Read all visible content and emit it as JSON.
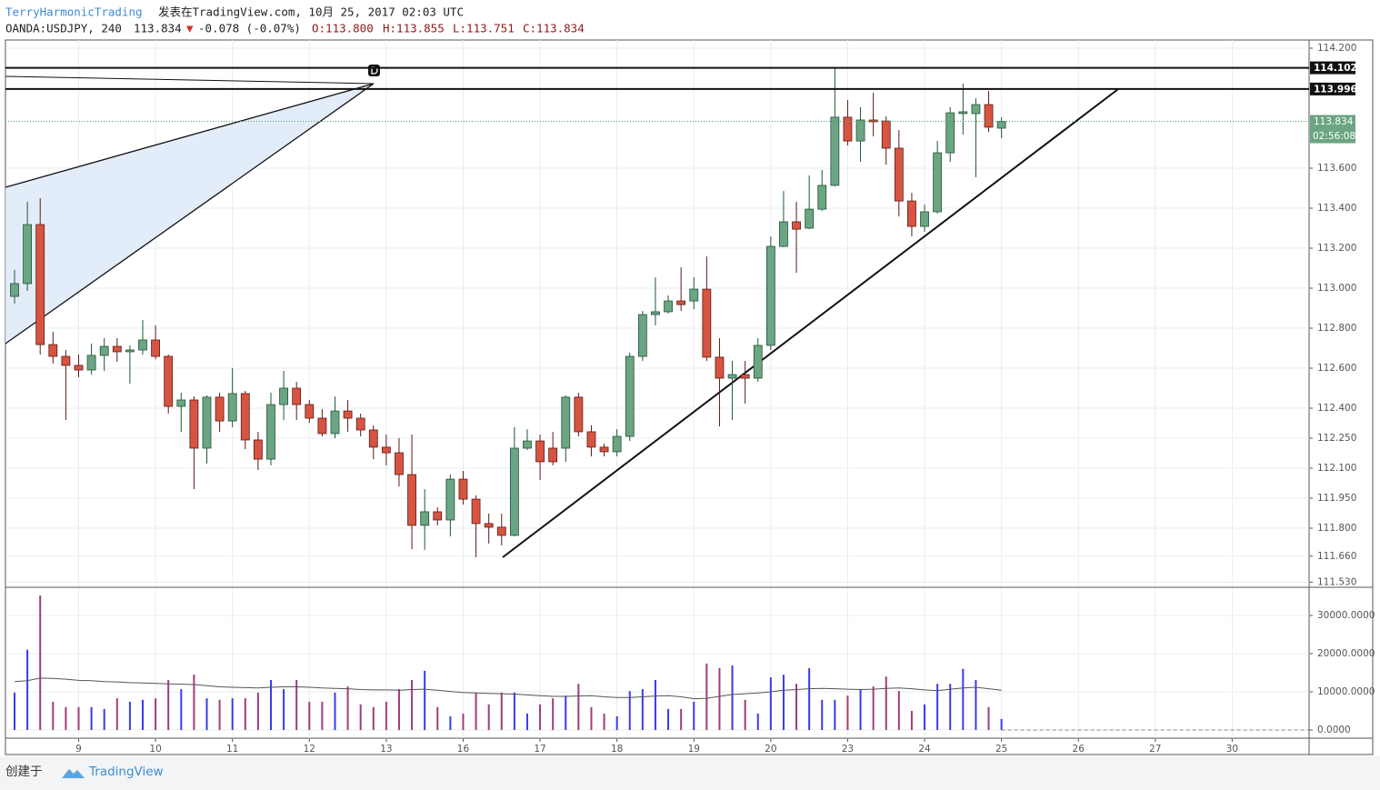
{
  "header": {
    "author": "TerryHarmonicTrading",
    "published": "发表在TradingView.com, 10月 25, 2017 02:03 UTC",
    "symbol": "OANDA:USDJPY, 240",
    "last": "113.834",
    "arrow": "▼",
    "change": "-0.078 (-0.07%)",
    "open": "O:113.800",
    "high": "H:113.855",
    "low": "L:113.751",
    "close": "C:113.834"
  },
  "footer": {
    "created": "创建于",
    "brand": "TradingView"
  },
  "chart_data": {
    "type": "candlestick",
    "open": [
      112.959,
      113.023,
      113.318,
      112.718,
      112.659,
      112.614,
      112.591,
      112.664,
      112.709,
      112.682,
      112.691,
      112.741,
      112.659,
      112.409,
      112.441,
      112.2,
      112.455,
      112.336,
      112.473,
      112.241,
      112.145,
      112.418,
      112.5,
      112.418,
      112.35,
      112.273,
      112.386,
      112.35,
      112.291,
      112.205,
      112.177,
      112.068,
      111.814,
      111.882,
      111.841,
      112.045,
      111.945,
      111.823,
      111.805,
      111.764,
      112.2,
      112.236,
      112.2,
      112.2,
      112.455,
      112.282,
      112.205,
      112.182,
      112.259,
      112.659,
      112.868,
      112.882,
      112.936,
      112.936,
      112.995,
      112.655,
      112.55,
      112.568,
      112.55,
      112.714,
      113.209,
      113.332,
      113.3,
      113.395,
      113.514,
      113.855,
      113.736,
      113.841,
      113.836,
      113.7,
      113.436,
      113.309,
      113.382,
      113.677,
      113.873,
      113.873,
      113.918,
      113.8
    ],
    "high": [
      113.091,
      113.432,
      113.45,
      112.782,
      112.691,
      112.668,
      112.723,
      112.75,
      112.75,
      112.714,
      112.841,
      112.814,
      112.668,
      112.477,
      112.459,
      112.464,
      112.477,
      112.6,
      112.486,
      112.282,
      112.477,
      112.586,
      112.532,
      112.441,
      112.395,
      112.459,
      112.441,
      112.373,
      112.314,
      112.268,
      112.25,
      112.268,
      111.995,
      111.905,
      112.068,
      112.086,
      111.964,
      111.873,
      111.873,
      112.305,
      112.295,
      112.268,
      112.282,
      112.464,
      112.477,
      112.314,
      112.223,
      112.295,
      112.677,
      112.886,
      113.055,
      112.964,
      113.105,
      113.055,
      113.159,
      112.75,
      112.636,
      112.636,
      112.75,
      113.259,
      113.486,
      113.432,
      113.564,
      113.591,
      114.1,
      113.941,
      113.905,
      113.977,
      113.859,
      113.791,
      113.477,
      113.418,
      113.736,
      113.905,
      114.023,
      113.95,
      113.986,
      113.855
    ],
    "low": [
      112.923,
      112.986,
      112.668,
      112.623,
      112.341,
      112.555,
      112.568,
      112.586,
      112.632,
      112.523,
      112.668,
      112.645,
      112.373,
      112.282,
      111.995,
      112.123,
      112.282,
      112.305,
      112.195,
      112.091,
      112.114,
      112.341,
      112.341,
      112.327,
      112.259,
      112.25,
      112.282,
      112.259,
      112.145,
      112.114,
      112.009,
      111.695,
      111.691,
      111.814,
      111.759,
      111.918,
      111.655,
      111.723,
      111.714,
      111.759,
      112.191,
      112.041,
      112.114,
      112.132,
      112.259,
      112.159,
      112.159,
      112.159,
      112.236,
      112.636,
      112.814,
      112.873,
      112.886,
      112.895,
      112.636,
      112.309,
      112.341,
      112.423,
      112.532,
      112.691,
      113.205,
      113.077,
      113.295,
      113.386,
      113.509,
      113.714,
      113.632,
      113.759,
      113.618,
      113.359,
      113.259,
      113.282,
      113.373,
      113.632,
      113.768,
      113.555,
      113.782,
      113.751
    ],
    "close": [
      113.023,
      113.318,
      112.718,
      112.659,
      112.614,
      112.591,
      112.664,
      112.709,
      112.682,
      112.691,
      112.741,
      112.659,
      112.409,
      112.441,
      112.2,
      112.455,
      112.336,
      112.473,
      112.241,
      112.145,
      112.418,
      112.5,
      112.418,
      112.35,
      112.273,
      112.386,
      112.35,
      112.291,
      112.205,
      112.177,
      112.068,
      111.814,
      111.882,
      111.841,
      112.045,
      111.945,
      111.823,
      111.805,
      111.764,
      112.2,
      112.236,
      112.132,
      112.132,
      112.455,
      112.282,
      112.205,
      112.182,
      112.259,
      112.659,
      112.868,
      112.882,
      112.936,
      112.918,
      112.995,
      112.655,
      112.55,
      112.568,
      112.55,
      112.714,
      113.209,
      113.332,
      113.295,
      113.395,
      113.514,
      113.855,
      113.736,
      113.841,
      113.832,
      113.7,
      113.436,
      113.309,
      113.382,
      113.677,
      113.877,
      113.882,
      113.918,
      113.805,
      113.834
    ],
    "volume": [
      9800,
      21000,
      35200,
      7400,
      6000,
      6000,
      6000,
      5500,
      8300,
      7400,
      7900,
      8300,
      13100,
      10700,
      14500,
      8300,
      7900,
      8300,
      8300,
      9800,
      13100,
      10700,
      13100,
      7400,
      7400,
      9800,
      11400,
      6700,
      6000,
      7400,
      10700,
      13100,
      15500,
      6000,
      3600,
      4300,
      9800,
      6700,
      9800,
      9800,
      4300,
      6700,
      8300,
      9000,
      12100,
      6000,
      4300,
      3600,
      10200,
      10700,
      13100,
      5500,
      5500,
      7400,
      17400,
      16200,
      16900,
      7900,
      4300,
      13800,
      14500,
      12100,
      16200,
      7900,
      7900,
      9000,
      10700,
      11400,
      14000,
      10200,
      5000,
      6700,
      12100,
      12100,
      16000,
      13100,
      6000,
      2900
    ],
    "volume_ma": [
      12700,
      12900,
      13600,
      13500,
      13300,
      13000,
      12900,
      12700,
      12600,
      12400,
      12300,
      12200,
      12100,
      12000,
      11900,
      11600,
      11300,
      11200,
      11100,
      11000,
      11200,
      11300,
      11300,
      11200,
      11000,
      10900,
      10800,
      10600,
      10500,
      10500,
      10400,
      10600,
      10700,
      10400,
      10100,
      9800,
      9700,
      9600,
      9500,
      9400,
      9200,
      9000,
      8800,
      8800,
      8900,
      9000,
      8700,
      8500,
      8500,
      8700,
      8900,
      9000,
      8700,
      8200,
      8300,
      8800,
      9300,
      9500,
      9700,
      10000,
      10400,
      10600,
      10800,
      10900,
      10800,
      10700,
      10600,
      10700,
      10900,
      11000,
      10800,
      10500,
      10300,
      10700,
      11000,
      11200,
      10800,
      10400
    ],
    "up_color": "#6ba583",
    "down_color": "#d75442",
    "volume_up_color": "#3a3aee",
    "volume_down_color": "#a03c78",
    "ma_color": "#555555",
    "xlim": [
      -0.71,
      101
    ],
    "xticks": [
      {
        "value": 5,
        "label": "9"
      },
      {
        "value": 11,
        "label": "10"
      },
      {
        "value": 17,
        "label": "11"
      },
      {
        "value": 23,
        "label": "12"
      },
      {
        "value": 29,
        "label": "13"
      },
      {
        "value": 35,
        "label": "16"
      },
      {
        "value": 41,
        "label": "17"
      },
      {
        "value": 47,
        "label": "18"
      },
      {
        "value": 53,
        "label": "19"
      },
      {
        "value": 59,
        "label": "20"
      },
      {
        "value": 65,
        "label": "23"
      },
      {
        "value": 71,
        "label": "24"
      },
      {
        "value": 77,
        "label": "25"
      },
      {
        "value": 83,
        "label": "26"
      },
      {
        "value": 89,
        "label": "27"
      },
      {
        "value": 95,
        "label": "30"
      }
    ],
    "ylim": [
      111.509,
      114.241
    ],
    "yticks": [
      {
        "value": 114.2,
        "label": "114.200"
      },
      {
        "value": 113.6,
        "label": "113.600"
      },
      {
        "value": 113.4,
        "label": "113.400"
      },
      {
        "value": 113.2,
        "label": "113.200"
      },
      {
        "value": 113,
        "label": "113.000"
      },
      {
        "value": 112.8,
        "label": "112.800"
      },
      {
        "value": 112.6,
        "label": "112.600"
      },
      {
        "value": 112.4,
        "label": "112.400"
      },
      {
        "value": 112.25,
        "label": "112.250"
      },
      {
        "value": 112.1,
        "label": "112.100"
      },
      {
        "value": 111.95,
        "label": "111.950"
      },
      {
        "value": 111.8,
        "label": "111.800"
      },
      {
        "value": 111.66,
        "label": "111.660"
      },
      {
        "value": 111.53,
        "label": "111.530"
      }
    ],
    "vlim": [
      -2143,
      37143
    ],
    "vticks": [
      {
        "value": 30000,
        "label": "30000.0000"
      },
      {
        "value": 20000,
        "label": "20000.0000"
      },
      {
        "value": 10000,
        "label": "10000.0000"
      },
      {
        "value": 0,
        "label": "0.0000"
      }
    ],
    "price_lines": [
      114.102,
      113.996
    ],
    "current_price": 113.834,
    "countdown": "02:56:08",
    "grid": true
  }
}
